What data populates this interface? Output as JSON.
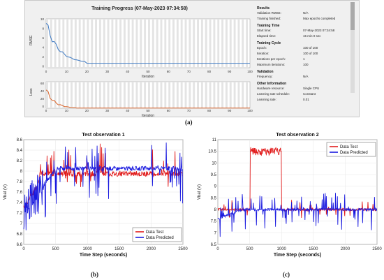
{
  "panel_a": {
    "title": "Training Progress (07-May-2023 07:34:58)",
    "rmse_chart": {
      "ylabel": "RMSE",
      "xlabel": "Iteration",
      "yticks": [
        "10",
        "8",
        "6",
        "4",
        "2",
        "0"
      ],
      "xticks": [
        "0",
        "10",
        "20",
        "30",
        "40",
        "50",
        "60",
        "70",
        "80",
        "90",
        "100"
      ]
    },
    "loss_chart": {
      "ylabel": "Loss",
      "xlabel": "Iteration",
      "yticks": [
        "60",
        "40",
        "20",
        "0"
      ],
      "xticks": [
        "0",
        "10",
        "20",
        "30",
        "40",
        "50",
        "60",
        "70",
        "80",
        "90",
        "100"
      ]
    },
    "results": {
      "title": "Results",
      "rows": [
        {
          "k": "Validation RMSE:",
          "v": "N/A"
        },
        {
          "k": "Training finished:",
          "v": "Max epochs completed"
        }
      ]
    },
    "training_time": {
      "title": "Training Time",
      "rows": [
        {
          "k": "Start time:",
          "v": "07-May-2023 07:34:58"
        },
        {
          "k": "Elapsed time:",
          "v": "15 min 0 sec"
        }
      ]
    },
    "training_cycle": {
      "title": "Training Cycle",
      "rows": [
        {
          "k": "Epoch:",
          "v": "100 of 100"
        },
        {
          "k": "Iteration:",
          "v": "100 of 100"
        },
        {
          "k": "Iterations per epoch:",
          "v": "1"
        },
        {
          "k": "Maximum iterations:",
          "v": "100"
        }
      ]
    },
    "validation": {
      "title": "Validation",
      "rows": [
        {
          "k": "Frequency:",
          "v": "N/A"
        }
      ]
    },
    "other_info": {
      "title": "Other Information",
      "rows": [
        {
          "k": "Hardware resource:",
          "v": "Single CPU"
        },
        {
          "k": "Learning rate schedule:",
          "v": "Constant"
        },
        {
          "k": "Learning rate:",
          "v": "0.01"
        }
      ]
    },
    "label": "(a)"
  },
  "chart_data": [
    {
      "type": "line",
      "title": "Test observation 1",
      "xlabel": "Time Step (seconds)",
      "ylabel": "Vbat (V)",
      "xlim": [
        0,
        2500
      ],
      "ylim": [
        6.6,
        8.6
      ],
      "xticks": [
        0,
        500,
        1000,
        1500,
        2000,
        2500
      ],
      "yticks": [
        6.6,
        6.8,
        7.0,
        7.2,
        7.4,
        7.6,
        7.8,
        8.0,
        8.2,
        8.4,
        8.6
      ],
      "legend": [
        "Data Test",
        "Data Predicted"
      ],
      "legend_position": "bottom-right",
      "colors": {
        "test": "#e11d1d",
        "pred": "#1a1adf"
      },
      "label": "(b)"
    },
    {
      "type": "line",
      "title": "Test observation 2",
      "xlabel": "Time Step (seconds)",
      "ylabel": "Vbat (V)",
      "xlim": [
        0,
        2500
      ],
      "ylim": [
        6.5,
        11
      ],
      "xticks": [
        0,
        500,
        1000,
        1500,
        2000,
        2500
      ],
      "yticks": [
        6.5,
        7.0,
        7.5,
        8.0,
        8.5,
        9.0,
        9.5,
        10.0,
        10.5,
        11.0
      ],
      "legend": [
        "Data Test",
        "Data Predicted"
      ],
      "legend_position": "top-right",
      "colors": {
        "test": "#e11d1d",
        "pred": "#1a1adf"
      },
      "label": "(c)"
    }
  ]
}
